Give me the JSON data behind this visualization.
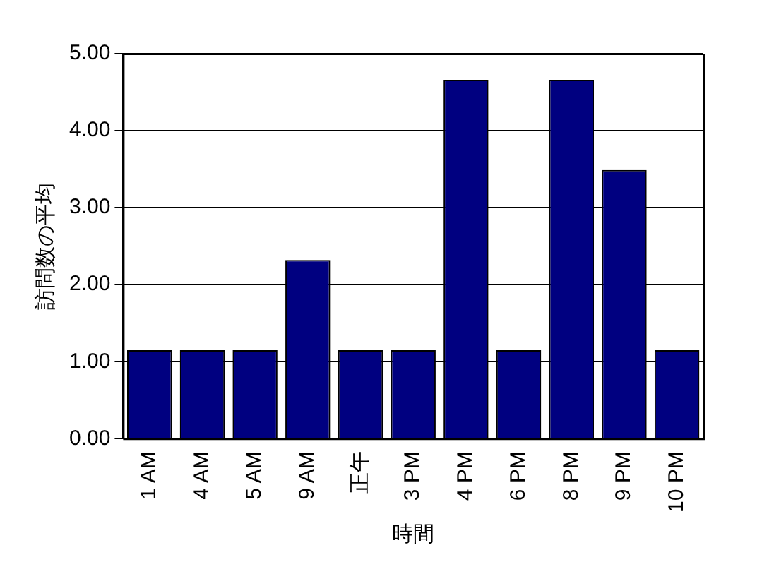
{
  "chart_data": {
    "type": "bar",
    "xlabel": "時間",
    "ylabel": "訪問数の平均",
    "categories": [
      "1 AM",
      "4 AM",
      "5 AM",
      "9 AM",
      "正午",
      "3 PM",
      "4 PM",
      "6 PM",
      "8 PM",
      "9 PM",
      "10 PM"
    ],
    "values": [
      1.15,
      1.15,
      1.15,
      2.32,
      1.15,
      1.15,
      4.66,
      1.15,
      4.66,
      3.49,
      1.15
    ],
    "color": "#000080",
    "ylim": [
      0,
      5
    ],
    "yticks": [
      {
        "value": 0,
        "label": "0.00"
      },
      {
        "value": 1,
        "label": "1.00"
      },
      {
        "value": 2,
        "label": "2.00"
      },
      {
        "value": 3,
        "label": "3.00"
      },
      {
        "value": 4,
        "label": "4.00"
      },
      {
        "value": 5,
        "label": "5.00"
      }
    ],
    "grid": "y",
    "legend": false
  }
}
